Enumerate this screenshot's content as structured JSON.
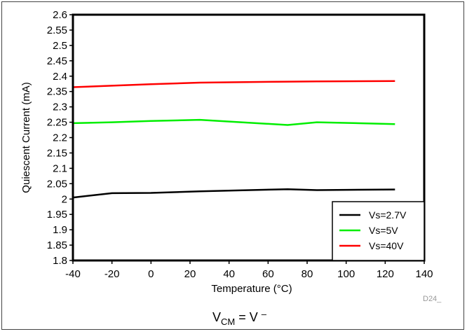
{
  "chart_data": {
    "type": "line",
    "title": "",
    "xlabel": "Temperature (°C)",
    "ylabel": "Quiescent Current (mA)",
    "xlim": [
      -40,
      140
    ],
    "ylim": [
      1.8,
      2.6
    ],
    "x_ticks": [
      "-40",
      "-20",
      "0",
      "20",
      "40",
      "60",
      "80",
      "100",
      "120",
      "140"
    ],
    "y_ticks": [
      "1.8",
      "1.85",
      "1.9",
      "1.95",
      "2",
      "2.05",
      "2.1",
      "2.15",
      "2.2",
      "2.25",
      "2.3",
      "2.35",
      "2.4",
      "2.45",
      "2.5",
      "2.55",
      "2.6"
    ],
    "grid": false,
    "legend_position": "bottom-right",
    "series": [
      {
        "name": "Vs=2.7V",
        "color": "#000000",
        "x": [
          -40,
          -20,
          0,
          25,
          70,
          85,
          125
        ],
        "y": [
          2.005,
          2.019,
          2.02,
          2.025,
          2.032,
          2.029,
          2.031
        ]
      },
      {
        "name": "Vs=5V",
        "color": "#00ee00",
        "x": [
          -40,
          -20,
          0,
          25,
          70,
          85,
          125
        ],
        "y": [
          2.247,
          2.25,
          2.254,
          2.258,
          2.241,
          2.25,
          2.244
        ]
      },
      {
        "name": "Vs=40V",
        "color": "#ff0000",
        "x": [
          -40,
          -20,
          0,
          25,
          70,
          85,
          125
        ],
        "y": [
          2.364,
          2.369,
          2.374,
          2.379,
          2.382,
          2.383,
          2.384
        ]
      }
    ]
  },
  "figure_id": "D24_",
  "caption": {
    "lhs_main": "V",
    "lhs_sub": "CM",
    "equals": " = V ",
    "rhs_sup": "–"
  }
}
